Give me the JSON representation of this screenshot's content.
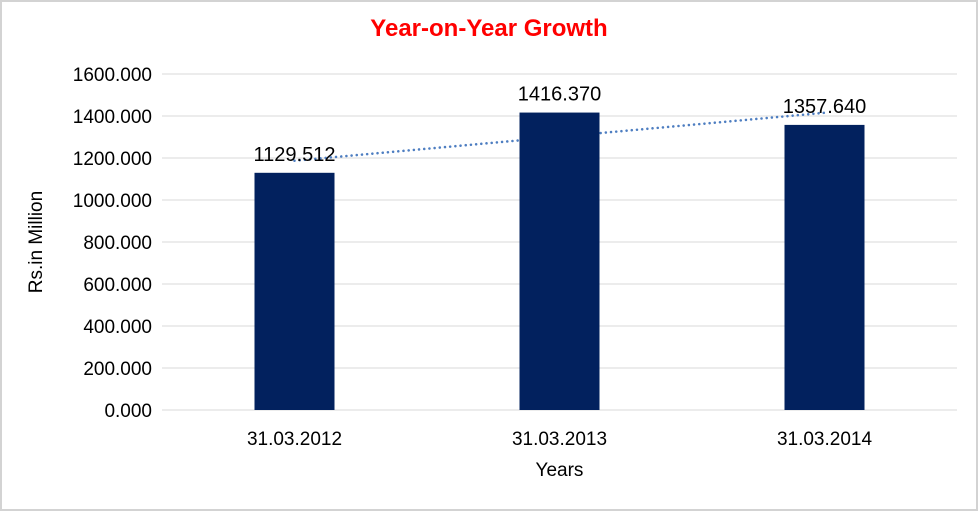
{
  "canvas": {
    "background": "#FFFFFF",
    "border_color": "#D3D3D3"
  },
  "chart_data": {
    "type": "bar",
    "title": "Year-on-Year Growth",
    "title_color": "#FF0000",
    "xlabel": "Years",
    "ylabel": "Rs.in Million",
    "categories": [
      "31.03.2012",
      "31.03.2013",
      "31.03.2014"
    ],
    "values": [
      1129.512,
      1416.37,
      1357.64
    ],
    "data_labels": [
      "1129.512",
      "1416.370",
      "1357.640"
    ],
    "ylim": [
      0,
      1600
    ],
    "ytick_step": 200,
    "ytick_decimals": 3,
    "ytick_labels": [
      "0.000",
      "200.000",
      "400.000",
      "600.000",
      "800.000",
      "1000.000",
      "1200.000",
      "1400.000",
      "1600.000"
    ],
    "grid": true,
    "legend": "none",
    "bar_color": "#02215E",
    "gridline_color": "#D9D9D9",
    "axis_text_color": "#000000",
    "trendline": {
      "type": "linear",
      "style": "dotted",
      "color": "#4E7EC1"
    }
  }
}
